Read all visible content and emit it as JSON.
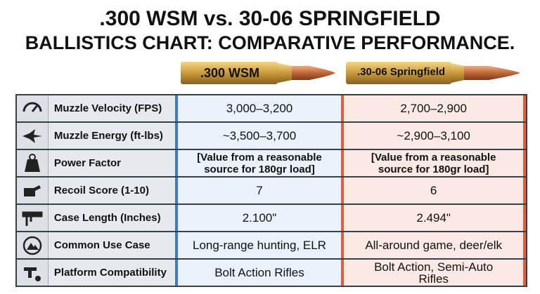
{
  "header": {
    "title_line1": ".300 WSM vs. 30-06 SPRINGFIELD",
    "title_line2": "BALLISTICS CHART: COMPARATIVE PERFORMANCE."
  },
  "columns": [
    ".300 WSM",
    ".30-06 Springfield"
  ],
  "table": {
    "rows": [
      [
        "Muzzle Velocity (FPS)",
        "3,000–3,200",
        "2,700–2,900"
      ],
      [
        "Muzzle Energy (ft-lbs)",
        "~3,500–3,700",
        "~2,900–3,100"
      ],
      [
        "Power Factor",
        "[Value from a reasonable source for 180gr load]",
        "[Value from a reasonable source for 180gr load]"
      ],
      [
        "Recoil Score (1-10)",
        "7",
        "6"
      ],
      [
        "Case Length (Inches)",
        "2.100\"",
        "2.494\""
      ],
      [
        "Common Use Case",
        "Long-range hunting, ELR",
        "All-around game, deer/elk"
      ],
      [
        "Platform Compatibility",
        "Bolt Action Rifles",
        "Bolt Action, Semi-Auto Rifles"
      ]
    ]
  }
}
